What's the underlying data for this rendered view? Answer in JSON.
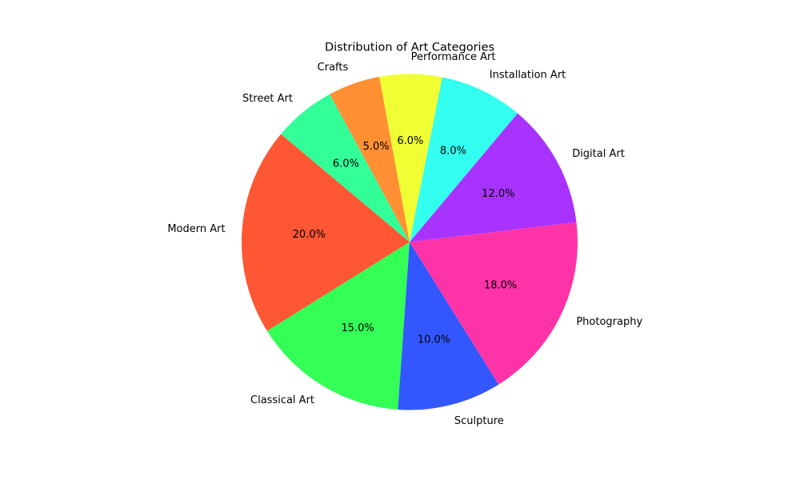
{
  "chart_data": {
    "type": "pie",
    "title": "Distribution of Art Categories",
    "start_angle_deg": 140,
    "direction": "counterclockwise",
    "categories": [
      "Modern Art",
      "Classical Art",
      "Sculpture",
      "Photography",
      "Digital Art",
      "Installation Art",
      "Performance Art",
      "Crafts",
      "Street Art"
    ],
    "values": [
      20,
      15,
      10,
      18,
      12,
      8,
      6,
      5,
      6
    ],
    "percent_labels": [
      "20.0%",
      "15.0%",
      "10.0%",
      "18.0%",
      "12.0%",
      "8.0%",
      "6.0%",
      "5.0%",
      "6.0%"
    ],
    "colors": [
      "#FF5733",
      "#33FF57",
      "#3357FF",
      "#FF33A8",
      "#A833FF",
      "#33FFF0",
      "#F0FF33",
      "#FF8F33",
      "#33FF99"
    ],
    "legend": "none",
    "grid": false
  }
}
